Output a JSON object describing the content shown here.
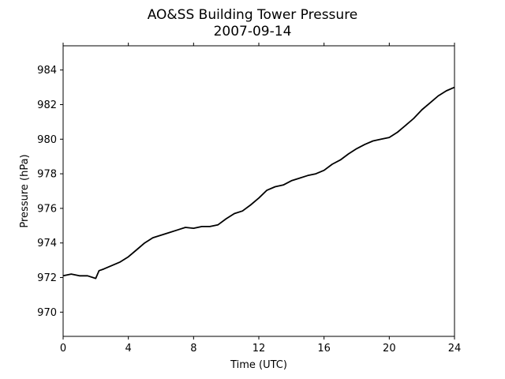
{
  "chart_data": {
    "type": "line",
    "title": "AO&SS Building Tower Pressure",
    "subtitle": "2007-09-14",
    "xlabel": "Time (UTC)",
    "ylabel": "Pressure (hPa)",
    "xlim": [
      0,
      24
    ],
    "ylim": [
      968.6,
      985.4
    ],
    "xticks": [
      0,
      4,
      8,
      12,
      16,
      20,
      24
    ],
    "xtick_labels": [
      "0",
      "4",
      "8",
      "12",
      "16",
      "20",
      "24"
    ],
    "yticks": [
      970,
      972,
      974,
      976,
      978,
      980,
      982,
      984
    ],
    "ytick_labels": [
      "970",
      "972",
      "974",
      "976",
      "978",
      "980",
      "982",
      "984"
    ],
    "grid": false,
    "line_color": "#000000",
    "series": [
      {
        "x": [
          0,
          0.5,
          1.0,
          1.5,
          2.0,
          2.2,
          2.5,
          3.0,
          3.5,
          4.0,
          4.5,
          5.0,
          5.5,
          6.0,
          6.5,
          7.0,
          7.5,
          8.0,
          8.5,
          9.0,
          9.5,
          10.0,
          10.5,
          11.0,
          11.5,
          12.0,
          12.5,
          13.0,
          13.5,
          14.0,
          14.5,
          15.0,
          15.5,
          16.0,
          16.5,
          17.0,
          17.5,
          18.0,
          18.5,
          19.0,
          19.5,
          20.0,
          20.5,
          21.0,
          21.5,
          22.0,
          22.5,
          23.0,
          23.5,
          24.0
        ],
        "y": [
          972.1,
          972.2,
          972.1,
          972.1,
          971.95,
          972.4,
          972.5,
          972.7,
          972.9,
          973.2,
          973.6,
          974.0,
          974.3,
          974.45,
          974.6,
          974.75,
          974.9,
          974.85,
          974.95,
          974.95,
          975.05,
          975.4,
          975.7,
          975.85,
          976.2,
          976.6,
          977.05,
          977.25,
          977.35,
          977.6,
          977.75,
          977.9,
          978.0,
          978.2,
          978.55,
          978.8,
          979.15,
          979.45,
          979.7,
          979.9,
          980.0,
          980.1,
          980.4,
          980.8,
          981.2,
          981.7,
          982.1,
          982.5,
          982.8,
          983.0
        ]
      }
    ]
  }
}
